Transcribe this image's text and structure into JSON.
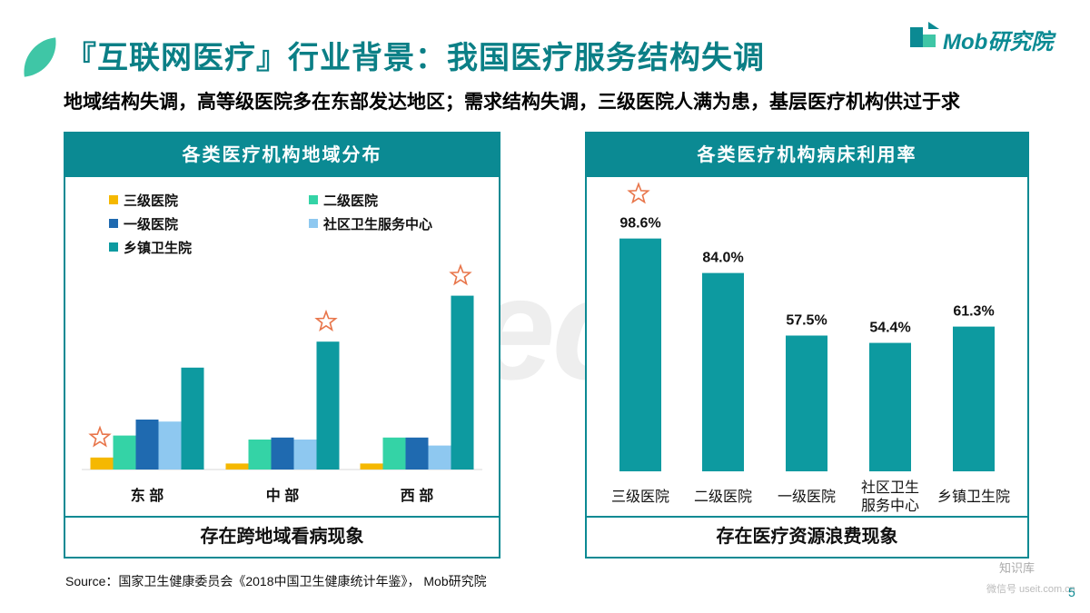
{
  "title": "『互联网医疗』行业背景：我国医疗服务结构失调",
  "logo": "Mob研究院",
  "subtitle": "地域结构失调，高等级医院多在东部发达地区；需求结构失调，三级医院人满为患，基层医疗机构供过于求",
  "watermark": "MobTech",
  "left_panel": {
    "header": "各类医疗机构地域分布",
    "footer": "存在跨地域看病现象"
  },
  "right_panel": {
    "header": "各类医疗机构病床利用率",
    "footer": "存在医疗资源浪费现象"
  },
  "source": "Source：国家卫生健康委员会《2018中国卫生健康统计年鉴》， Mob研究院",
  "wechat": "知识库",
  "wechat_sub": "微信号 useit.com.cn",
  "page_number": "5",
  "colors": {
    "teal": "#0b8a93",
    "s1": "#f5b800",
    "s2": "#34d3a6",
    "s3": "#1f6ab0",
    "s4": "#8ec8f0",
    "s5": "#0d9aa0",
    "star": "#e8754a"
  },
  "chart_data": [
    {
      "type": "bar",
      "title": "各类医疗机构地域分布",
      "categories": [
        "东 部",
        "中 部",
        "西 部"
      ],
      "series": [
        {
          "name": "三级医院",
          "values": [
            6,
            3,
            3
          ]
        },
        {
          "name": "二级医院",
          "values": [
            17,
            15,
            16
          ]
        },
        {
          "name": "一级医院",
          "values": [
            25,
            16,
            16
          ]
        },
        {
          "name": "社区卫生服务中心",
          "values": [
            24,
            15,
            12
          ]
        },
        {
          "name": "乡镇卫生院",
          "values": [
            51,
            64,
            87
          ]
        }
      ],
      "legend": "top-left",
      "stars": [
        [
          0,
          0
        ],
        [
          1,
          4
        ],
        [
          2,
          4
        ]
      ],
      "ylim": [
        0,
        100
      ],
      "axis_numbers_shown": false
    },
    {
      "type": "bar",
      "title": "各类医疗机构病床利用率",
      "categories": [
        "三级医院",
        "二级医院",
        "一级医院",
        "社区卫生\n服务中心",
        "乡镇卫生院"
      ],
      "values": [
        98.6,
        84.0,
        57.5,
        54.4,
        61.3
      ],
      "labels": [
        "98.6%",
        "84.0%",
        "57.5%",
        "54.4%",
        "61.3%"
      ],
      "stars": [
        0
      ],
      "ylim": [
        0,
        100
      ]
    }
  ]
}
